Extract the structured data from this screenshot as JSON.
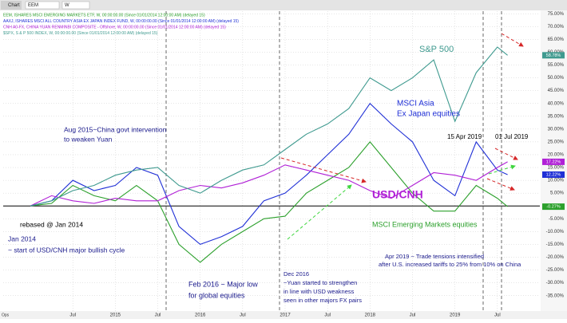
{
  "toolbar": {
    "tab": "Chart",
    "symbol": "EEM",
    "interval": "W",
    "footer": "Ops"
  },
  "chart_data": {
    "type": "line",
    "x": [
      2014.0,
      2014.25,
      2014.5,
      2014.75,
      2015.0,
      2015.25,
      2015.5,
      2015.75,
      2016.0,
      2016.25,
      2016.5,
      2016.75,
      2017.0,
      2017.25,
      2017.5,
      2017.75,
      2018.0,
      2018.25,
      2018.5,
      2018.75,
      2019.0,
      2019.25,
      2019.5,
      2019.62
    ],
    "series": [
      {
        "name": "EEM, ISHARES MSCI EMERGING MARKETS ETF, W, 00:00:00.00 (Since 01/01/2014 12:00:00 AM) (delayed 15)",
        "color": "#2ca02c",
        "values": [
          0,
          1,
          8,
          4,
          2,
          8,
          2,
          -15,
          -22,
          -15,
          -10,
          -5,
          -4,
          5,
          10,
          15,
          25,
          15,
          5,
          -2,
          -2,
          8,
          3,
          -0.27
        ],
        "value_labels": [
          null,
          null,
          null,
          null,
          null,
          null,
          null,
          null,
          null,
          null,
          null,
          null,
          null,
          null,
          null,
          null,
          null,
          null,
          null,
          null,
          null,
          null,
          null,
          "-0.27%"
        ]
      },
      {
        "name": "AAXJ, ISHARES MSCI ALL COUNTRY ASIA EX JAPAN INDEX FUND, W, 00:00:00.00 (Since 01/01/2014 12:00:00 AM) (delayed 15)",
        "color": "#1f2fd6",
        "values": [
          0,
          2,
          10,
          6,
          8,
          15,
          12,
          -8,
          -15,
          -12,
          -8,
          2,
          5,
          12,
          20,
          28,
          40,
          32,
          25,
          10,
          4,
          25,
          14,
          12.22
        ],
        "value_labels": [
          null,
          null,
          null,
          null,
          null,
          null,
          null,
          null,
          null,
          null,
          null,
          null,
          null,
          null,
          null,
          null,
          null,
          null,
          null,
          null,
          null,
          null,
          null,
          "12.22%"
        ]
      },
      {
        "name": "CNH A0-FX, CHINA YUAN RENMINBI COMPOSITE - Offshore, W, 00:00:00.00 (Since 01/01/2014 12:00:00 AM) (delayed 15)",
        "color": "#b01fd6",
        "values": [
          0,
          4,
          2,
          1,
          3,
          2,
          2,
          6,
          8,
          7,
          9,
          12,
          16,
          14,
          12,
          10,
          6,
          3,
          8,
          13,
          12,
          10,
          15,
          17.22
        ],
        "value_labels": [
          null,
          null,
          null,
          null,
          null,
          null,
          null,
          null,
          null,
          null,
          null,
          null,
          null,
          null,
          null,
          null,
          null,
          null,
          null,
          null,
          null,
          null,
          null,
          "17.22%"
        ]
      },
      {
        "name": "$SPX, S & P 500 INDEX, W, 00:00:00.00 (Since 01/01/2014 12:00:00 AM) (delayed 15)",
        "color": "#3f9a8f",
        "values": [
          0,
          2,
          6,
          8,
          12,
          14,
          15,
          8,
          5,
          10,
          14,
          16,
          22,
          28,
          32,
          38,
          50,
          45,
          50,
          57,
          33,
          52,
          62,
          58.78
        ],
        "value_labels": [
          null,
          null,
          null,
          null,
          null,
          null,
          null,
          null,
          null,
          null,
          null,
          null,
          null,
          null,
          null,
          null,
          null,
          null,
          null,
          null,
          null,
          null,
          null,
          "58.78%"
        ]
      }
    ],
    "xlim": [
      2013.68,
      2020.0
    ],
    "xticks": [
      {
        "value": 2014.5,
        "label": "Jul"
      },
      2015,
      {
        "value": 2015.5,
        "label": "Jul"
      },
      2016,
      {
        "value": 2016.5,
        "label": "Jul"
      },
      2017,
      {
        "value": 2017.5,
        "label": "Jul"
      },
      2018,
      {
        "value": 2018.5,
        "label": "Jul"
      },
      2019,
      {
        "value": 2019.5,
        "label": "Jul"
      }
    ],
    "ylim": [
      -41,
      76
    ],
    "yticks": [
      {
        "value": -35,
        "label": "-35.00%"
      },
      {
        "value": -30,
        "label": "-30.00%"
      },
      {
        "value": -25,
        "label": "-25.00%"
      },
      {
        "value": -20,
        "label": "-20.00%"
      },
      {
        "value": -15,
        "label": "-15.00%"
      },
      {
        "value": -10,
        "label": "-10.00%"
      },
      {
        "value": -5,
        "label": "-5.00%"
      },
      {
        "value": 5,
        "label": "5.00%"
      },
      {
        "value": 10,
        "label": "10.00%"
      },
      {
        "value": 15,
        "label": "15.00%"
      },
      {
        "value": 20,
        "label": "20.00%"
      },
      {
        "value": 25,
        "label": "25.00%"
      },
      {
        "value": 30,
        "label": "30.00%"
      },
      {
        "value": 35,
        "label": "35.00%"
      },
      {
        "value": 40,
        "label": "40.00%"
      },
      {
        "value": 45,
        "label": "45.00%"
      },
      {
        "value": 50,
        "label": "50.00%"
      },
      {
        "value": 55,
        "label": "55.00%"
      },
      {
        "value": 60,
        "label": "60.00%"
      },
      {
        "value": 65,
        "label": "65.00%"
      },
      {
        "value": 70,
        "label": "70.00%"
      },
      {
        "value": 75,
        "label": "75.00%"
      }
    ],
    "grid": true,
    "annotations": [
      "S&P 500",
      "MSCI Asia",
      "Ex Japan equities",
      "Aug 2015~China govt intervention",
      "to weaken Yuan",
      "15 Apr 2019",
      "01 Jul 2019",
      "USD/CNH",
      "rebased @ Jan 2014",
      "MSCI Emerging Markets equities",
      "Jan 2014",
      "~ start of USD/CNH major bullish cycle",
      "Apr 2019 ~ Trade tensions intensified",
      "after U.S. increased tariffs to 25% from 10% on China",
      "Dec 2016",
      "~Yuan started to strengthen",
      "in line with USD weakness",
      "seen in other majors FX pairs",
      "Feb 2016 ~ Major low",
      "for global equities"
    ]
  }
}
